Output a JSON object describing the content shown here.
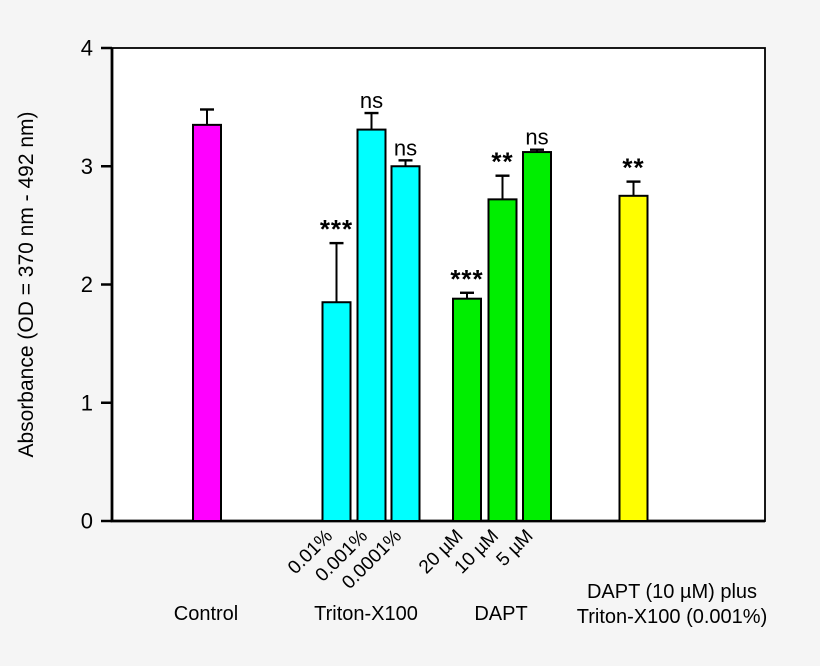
{
  "chart_data": {
    "type": "bar",
    "title": "",
    "xlabel": "",
    "ylabel": "Absorbance (OD = 370 nm - 492 nm)",
    "ylim": [
      0,
      4
    ],
    "yticks": [
      0,
      1,
      2,
      3,
      4
    ],
    "grid": false,
    "legend": "none",
    "error_bars": true,
    "groups": [
      {
        "label": "Control",
        "bars": [
          {
            "tick": "",
            "value": 3.35,
            "err": 0.13,
            "color": "#FF00FF",
            "sig": ""
          }
        ]
      },
      {
        "label": "Triton-X100",
        "bars": [
          {
            "tick": "0.01%",
            "value": 1.85,
            "err": 0.5,
            "color": "#00FFFF",
            "sig": "***"
          },
          {
            "tick": "0.001%",
            "value": 3.31,
            "err": 0.14,
            "color": "#00FFFF",
            "sig": "ns"
          },
          {
            "tick": "0.0001%",
            "value": 3.0,
            "err": 0.05,
            "color": "#00FFFF",
            "sig": "ns"
          }
        ]
      },
      {
        "label": "DAPT",
        "bars": [
          {
            "tick": "20 µM",
            "value": 1.88,
            "err": 0.05,
            "color": "#00EE00",
            "sig": "***"
          },
          {
            "tick": "10 µM",
            "value": 2.72,
            "err": 0.2,
            "color": "#00EE00",
            "sig": "**"
          },
          {
            "tick": "5 µM",
            "value": 3.12,
            "err": 0.02,
            "color": "#00EE00",
            "sig": "ns"
          }
        ]
      },
      {
        "label": "DAPT (10 µM) plus\nTriton-X100 (0.001%)",
        "bars": [
          {
            "tick": "",
            "value": 2.75,
            "err": 0.12,
            "color": "#FFFF00",
            "sig": "**"
          }
        ]
      }
    ],
    "colors": {
      "control": "#FF00FF",
      "triton": "#00FFFF",
      "dapt": "#00EE00",
      "combo": "#FFFF00",
      "axis": "#000000",
      "plot_background": "#FFFFFF",
      "page_background": "#f5f5f5"
    }
  }
}
